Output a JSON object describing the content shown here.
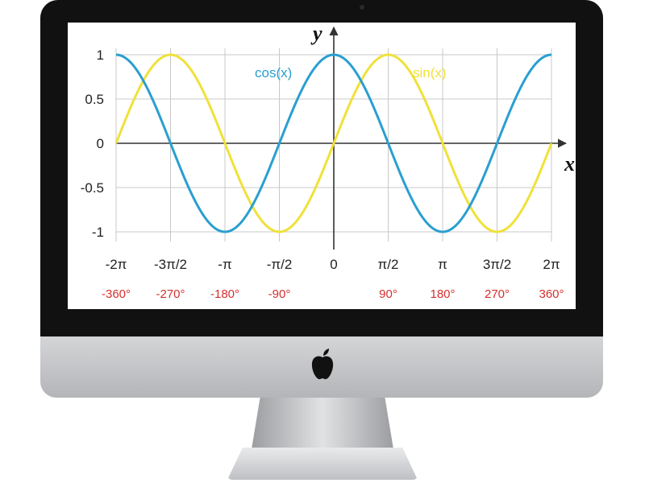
{
  "colors": {
    "cos": "#2a9fd0",
    "sin": "#f0e13a",
    "degree_text": "#d62f2f",
    "grid": "#c8c8c8"
  },
  "chart_data": {
    "type": "line",
    "title": "",
    "xlabel": "x",
    "ylabel": "y",
    "xlim": [
      "-2π (-360°)",
      "2π (360°)"
    ],
    "ylim": [
      -1,
      1
    ],
    "grid": true,
    "y_ticks": [
      "1",
      "0.5",
      "0",
      "-0.5",
      "-1"
    ],
    "x_ticks": [
      "-2π",
      "-3π/2",
      "-π",
      "-π/2",
      "0",
      "π/2",
      "π",
      "3π/2",
      "2π"
    ],
    "x_ticks_degrees": [
      "-360°",
      "-270°",
      "-180°",
      "-90°",
      "",
      "90°",
      "180°",
      "270°",
      "360°"
    ],
    "x_degrees": [
      -360,
      -270,
      -180,
      -90,
      0,
      90,
      180,
      270,
      360
    ],
    "series": [
      {
        "name": "cos(x)",
        "values": [
          1,
          0,
          -1,
          0,
          1,
          0,
          -1,
          0,
          1
        ]
      },
      {
        "name": "sin(x)",
        "values": [
          0,
          1,
          0,
          -1,
          0,
          1,
          0,
          -1,
          0
        ]
      }
    ]
  }
}
